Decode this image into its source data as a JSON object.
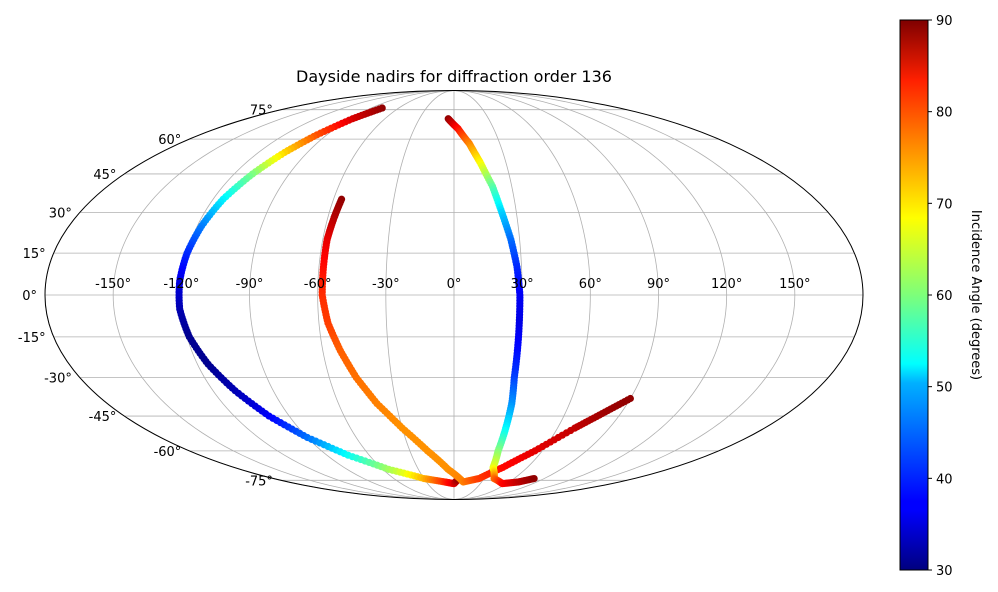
{
  "chart_data": {
    "type": "scatter",
    "projection": "mollweide",
    "title": "Dayside nadirs for diffraction order 136",
    "xlabel": "",
    "ylabel": "",
    "lon_ticks": [
      -150,
      -120,
      -90,
      -60,
      -30,
      0,
      30,
      60,
      90,
      120,
      150
    ],
    "lon_tick_labels": [
      "-150°",
      "-120°",
      "-90°",
      "-60°",
      "-30°",
      "0°",
      "30°",
      "60°",
      "90°",
      "120°",
      "150°"
    ],
    "lat_ticks": [
      75,
      60,
      45,
      30,
      15,
      0,
      -15,
      -30,
      -45,
      -60,
      -75
    ],
    "lat_tick_labels": [
      "75°",
      "60°",
      "45°",
      "30°",
      "15°",
      "0°",
      "-15°",
      "-30°",
      "-45°",
      "-60°",
      "-75°"
    ],
    "xlim": [
      -180,
      180
    ],
    "ylim": [
      -90,
      90
    ],
    "grid": true,
    "colorbar": {
      "label": "Incidence Angle (degrees)",
      "colormap": "jet",
      "range": [
        30,
        90
      ],
      "ticks": [
        30,
        40,
        50,
        60,
        70,
        80,
        90
      ],
      "tick_labels": [
        "30",
        "40",
        "50",
        "60",
        "70",
        "80",
        "90"
      ]
    },
    "series": [
      {
        "points": [
          {
            "lon": -78,
            "lat": 76,
            "inc": 89
          },
          {
            "lon": -88,
            "lat": 70,
            "inc": 85
          },
          {
            "lon": -97,
            "lat": 62,
            "inc": 78
          },
          {
            "lon": -104,
            "lat": 54,
            "inc": 70
          },
          {
            "lon": -110,
            "lat": 45,
            "inc": 60
          },
          {
            "lon": -115,
            "lat": 35,
            "inc": 52
          },
          {
            "lon": -118,
            "lat": 25,
            "inc": 45
          },
          {
            "lon": -120,
            "lat": 15,
            "inc": 40
          },
          {
            "lon": -121,
            "lat": 5,
            "inc": 36
          },
          {
            "lon": -121,
            "lat": -5,
            "inc": 33
          },
          {
            "lon": -119,
            "lat": -15,
            "inc": 31
          },
          {
            "lon": -115,
            "lat": -25,
            "inc": 31
          },
          {
            "lon": -109,
            "lat": -35,
            "inc": 33
          },
          {
            "lon": -101,
            "lat": -45,
            "inc": 37
          },
          {
            "lon": -90,
            "lat": -54,
            "inc": 44
          },
          {
            "lon": -75,
            "lat": -62,
            "inc": 53
          },
          {
            "lon": -55,
            "lat": -69,
            "inc": 62
          },
          {
            "lon": -30,
            "lat": -74,
            "inc": 72
          },
          {
            "lon": -10,
            "lat": -76,
            "inc": 80
          },
          {
            "lon": 0,
            "lat": -77,
            "inc": 84
          },
          {
            "lon": 5,
            "lat": -74,
            "inc": 89
          }
        ]
      },
      {
        "points": [
          {
            "lon": -56,
            "lat": 35,
            "inc": 89
          },
          {
            "lon": -57,
            "lat": 28,
            "inc": 87
          },
          {
            "lon": -58,
            "lat": 20,
            "inc": 84
          },
          {
            "lon": -58,
            "lat": 10,
            "inc": 82
          },
          {
            "lon": -58,
            "lat": 0,
            "inc": 80
          },
          {
            "lon": -56,
            "lat": -10,
            "inc": 79
          },
          {
            "lon": -52,
            "lat": -20,
            "inc": 77
          },
          {
            "lon": -47,
            "lat": -30,
            "inc": 76
          },
          {
            "lon": -40,
            "lat": -40,
            "inc": 75
          },
          {
            "lon": -30,
            "lat": -50,
            "inc": 74
          },
          {
            "lon": -18,
            "lat": -60,
            "inc": 74
          },
          {
            "lon": -5,
            "lat": -69,
            "inc": 74
          },
          {
            "lon": 10,
            "lat": -76,
            "inc": 75
          },
          {
            "lon": 25,
            "lat": -74,
            "inc": 79
          },
          {
            "lon": 40,
            "lat": -68,
            "inc": 82
          },
          {
            "lon": 55,
            "lat": -60,
            "inc": 84
          },
          {
            "lon": 70,
            "lat": -50,
            "inc": 86
          },
          {
            "lon": 80,
            "lat": -44,
            "inc": 88
          },
          {
            "lon": 90,
            "lat": -38,
            "inc": 89
          }
        ]
      },
      {
        "points": [
          {
            "lon": -5,
            "lat": 70,
            "inc": 89
          },
          {
            "lon": 3,
            "lat": 65,
            "inc": 82
          },
          {
            "lon": 10,
            "lat": 58,
            "inc": 75
          },
          {
            "lon": 15,
            "lat": 50,
            "inc": 68
          },
          {
            "lon": 20,
            "lat": 40,
            "inc": 58
          },
          {
            "lon": 23,
            "lat": 30,
            "inc": 50
          },
          {
            "lon": 26,
            "lat": 20,
            "inc": 44
          },
          {
            "lon": 28,
            "lat": 10,
            "inc": 40
          },
          {
            "lon": 29,
            "lat": 0,
            "inc": 37
          },
          {
            "lon": 29,
            "lat": -10,
            "inc": 36
          },
          {
            "lon": 29,
            "lat": -20,
            "inc": 38
          },
          {
            "lon": 29,
            "lat": -30,
            "inc": 41
          },
          {
            "lon": 30,
            "lat": -40,
            "inc": 46
          },
          {
            "lon": 30,
            "lat": -50,
            "inc": 52
          },
          {
            "lon": 30,
            "lat": -60,
            "inc": 60
          },
          {
            "lon": 32,
            "lat": -68,
            "inc": 66
          },
          {
            "lon": 40,
            "lat": -74,
            "inc": 76
          },
          {
            "lon": 55,
            "lat": -77,
            "inc": 82
          },
          {
            "lon": 70,
            "lat": -76,
            "inc": 86
          },
          {
            "lon": 80,
            "lat": -74,
            "inc": 89
          }
        ]
      }
    ]
  }
}
